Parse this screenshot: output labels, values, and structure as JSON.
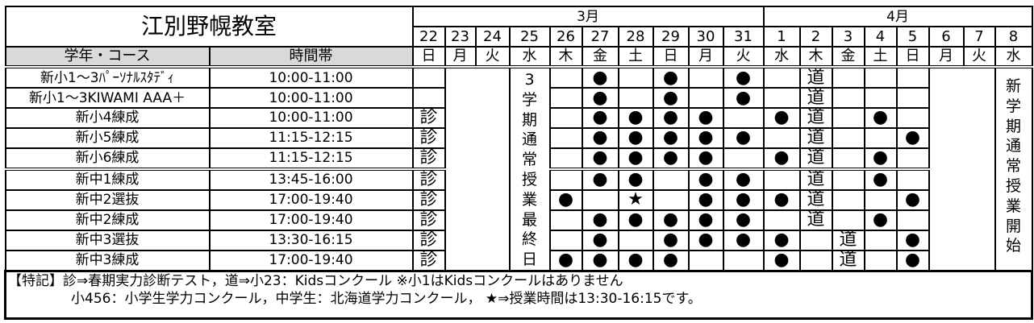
{
  "title": "江別野幌教室",
  "headers": {
    "course": "学年・コース",
    "time": "時間帯"
  },
  "months": [
    {
      "label": "3月",
      "span": 10
    },
    {
      "label": "4月",
      "span": 8
    }
  ],
  "days": [
    "22",
    "23",
    "24",
    "25",
    "26",
    "27",
    "28",
    "29",
    "30",
    "31",
    "1",
    "2",
    "3",
    "4",
    "5",
    "6",
    "7",
    "8"
  ],
  "weekdays": [
    "日",
    "月",
    "火",
    "水",
    "木",
    "金",
    "土",
    "日",
    "月",
    "火",
    "水",
    "木",
    "金",
    "土",
    "日",
    "月",
    "火",
    "水"
  ],
  "merged_notes": {
    "mar25": [
      "3",
      "学",
      "期",
      "通",
      "常",
      "授",
      "業",
      "最",
      "終",
      "日"
    ],
    "apr8": [
      "新",
      "学",
      "期",
      "通",
      "常",
      "授",
      "業",
      "開",
      "始"
    ]
  },
  "rows": [
    {
      "course": "新小1～3ﾊﾟｰｿﾅﾙｽﾀﾃﾞｨ",
      "time": "10:00-11:00",
      "cells": {
        "22": "",
        "26": "",
        "27": "●",
        "28": "",
        "29": "●",
        "30": "",
        "31": "●",
        "1": "",
        "2": "道",
        "3": "",
        "4": "",
        "5": ""
      }
    },
    {
      "course": "新小1～3KIWAMI AAA＋",
      "time": "10:00-11:00",
      "cells": {
        "22": "",
        "26": "",
        "27": "●",
        "28": "",
        "29": "●",
        "30": "",
        "31": "●",
        "1": "",
        "2": "道",
        "3": "",
        "4": "",
        "5": ""
      }
    },
    {
      "course": "新小4練成",
      "time": "10:00-11:00",
      "cells": {
        "22": "診",
        "26": "",
        "27": "●",
        "28": "●",
        "29": "●",
        "30": "●",
        "31": "",
        "1": "●",
        "2": "道",
        "3": "",
        "4": "●",
        "5": ""
      }
    },
    {
      "course": "新小5練成",
      "time": "11:15-12:15",
      "cells": {
        "22": "診",
        "26": "",
        "27": "●",
        "28": "●",
        "29": "●",
        "30": "●",
        "31": "●",
        "1": "",
        "2": "道",
        "3": "",
        "4": "",
        "5": "●"
      }
    },
    {
      "course": "新小6練成",
      "time": "11:15-12:15",
      "cells": {
        "22": "診",
        "26": "",
        "27": "●",
        "28": "●",
        "29": "●",
        "30": "●",
        "31": "",
        "1": "●",
        "2": "道",
        "3": "",
        "4": "●",
        "5": ""
      }
    },
    {
      "course": "新中1練成",
      "time": "13:45-16:00",
      "cells": {
        "22": "診",
        "26": "",
        "27": "●",
        "28": "●",
        "29": "",
        "30": "●",
        "31": "●",
        "1": "",
        "2": "道",
        "3": "",
        "4": "●",
        "5": ""
      }
    },
    {
      "course": "新中2選抜",
      "time": "17:00-19:40",
      "cells": {
        "22": "診",
        "26": "●",
        "27": "",
        "28": "★",
        "29": "",
        "30": "●",
        "31": "●",
        "1": "●",
        "2": "道",
        "3": "",
        "4": "",
        "5": "●"
      }
    },
    {
      "course": "新中2練成",
      "time": "17:00-19:40",
      "cells": {
        "22": "診",
        "26": "",
        "27": "●",
        "28": "●",
        "29": "●",
        "30": "●",
        "31": "●",
        "1": "",
        "2": "道",
        "3": "",
        "4": "●",
        "5": ""
      }
    },
    {
      "course": "新中3選抜",
      "time": "13:30-16:15",
      "cells": {
        "22": "診",
        "26": "",
        "27": "●",
        "28": "",
        "29": "●",
        "30": "●",
        "31": "●",
        "1": "●",
        "2": "",
        "3": "道",
        "4": "",
        "5": "●"
      }
    },
    {
      "course": "新中3練成",
      "time": "17:00-19:40",
      "cells": {
        "22": "診",
        "26": "●",
        "27": "●",
        "28": "●",
        "29": "●",
        "30": "",
        "31": "",
        "1": "●",
        "2": "",
        "3": "道",
        "4": "",
        "5": "●"
      }
    }
  ],
  "footer": {
    "line1": "【特記】診⇒春期実力診断テスト，道⇒小23：Kidsコンクール ※小1はKidsコンクールはありません",
    "line2": "小456：小学生学力コンクール，中学生：北海道学力コンクール， ★⇒授業時間は13:30-16:15です。"
  }
}
